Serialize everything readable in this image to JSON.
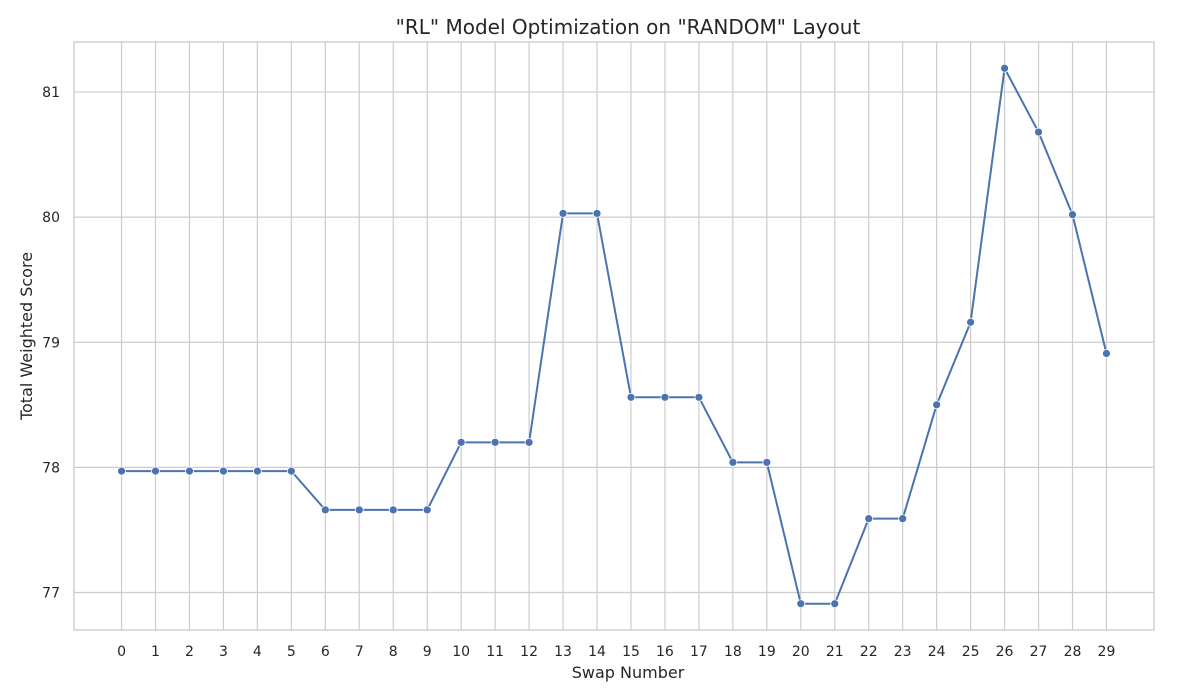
{
  "chart_data": {
    "type": "line",
    "title": "\"RL\" Model Optimization on \"RANDOM\" Layout",
    "xlabel": "Swap Number",
    "ylabel": "Total Weighted Score",
    "x": [
      0,
      1,
      2,
      3,
      4,
      5,
      6,
      7,
      8,
      9,
      10,
      11,
      12,
      13,
      14,
      15,
      16,
      17,
      18,
      19,
      20,
      21,
      22,
      23,
      24,
      25,
      26,
      27,
      28,
      29
    ],
    "xlim": [
      -1.4,
      30.4
    ],
    "ylim": [
      76.7,
      81.4
    ],
    "yticks": [
      77,
      78,
      79,
      80,
      81
    ],
    "grid": true,
    "legend": "none",
    "series": [
      {
        "color": "#4c72b0",
        "values": [
          77.97,
          77.97,
          77.97,
          77.97,
          77.97,
          77.97,
          77.66,
          77.66,
          77.66,
          77.66,
          78.2,
          78.2,
          78.2,
          80.03,
          80.03,
          78.56,
          78.56,
          78.56,
          78.04,
          78.04,
          76.91,
          76.91,
          77.59,
          77.59,
          78.5,
          79.16,
          81.19,
          80.68,
          80.02,
          78.91
        ]
      }
    ]
  }
}
